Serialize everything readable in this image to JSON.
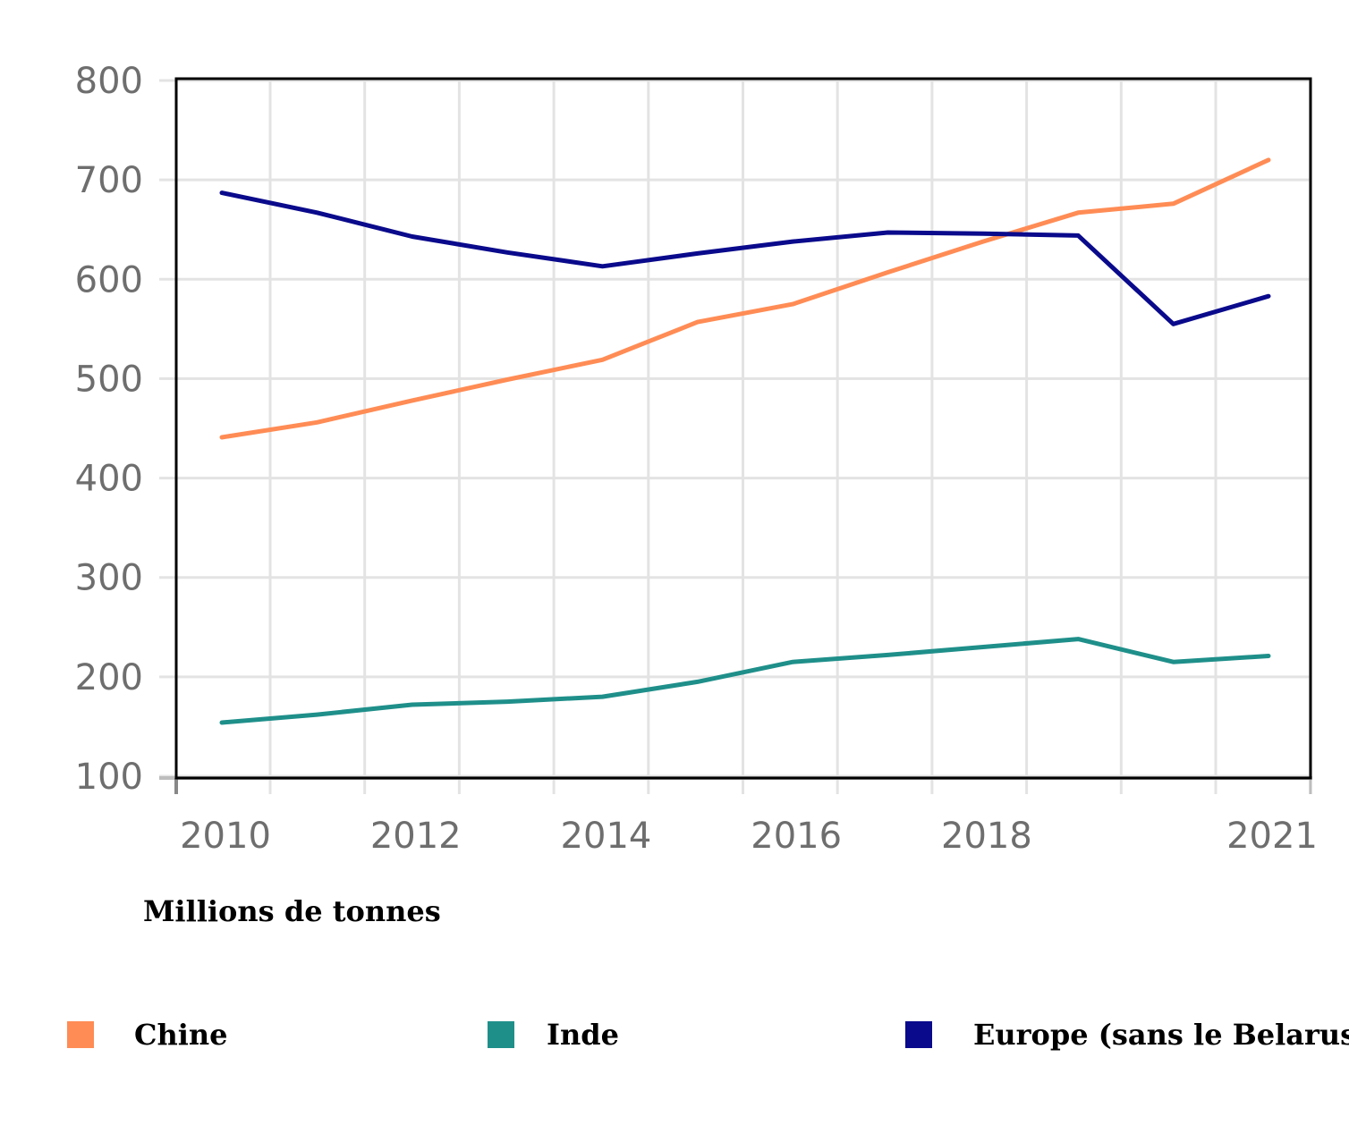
{
  "chart_data": {
    "type": "line",
    "title": "",
    "xlabel": "",
    "ylabel": "Millions de tonnes",
    "x": [
      2010,
      2011,
      2012,
      2013,
      2014,
      2015,
      2016,
      2017,
      2018,
      2019,
      2020,
      2021
    ],
    "x_tick_labels": [
      "2010",
      "2012",
      "2014",
      "2016",
      "2018",
      "2021"
    ],
    "x_tick_values": [
      2010,
      2012,
      2014,
      2016,
      2018,
      2021
    ],
    "y_tick_labels": [
      "800",
      "700",
      "600",
      "500",
      "400",
      "300",
      "200",
      "100"
    ],
    "y_tick_values": [
      800,
      700,
      600,
      500,
      400,
      300,
      200,
      100
    ],
    "ylim": [
      100,
      800
    ],
    "grid": true,
    "legend_position": "bottom",
    "series": [
      {
        "name": "Chine",
        "color": "#ff8c55",
        "values": [
          441,
          456,
          478,
          499,
          519,
          557,
          575,
          607,
          638,
          667,
          676,
          720
        ]
      },
      {
        "name": "Inde",
        "color": "#1f8f8a",
        "values": [
          154,
          162,
          172,
          175,
          180,
          195,
          215,
          222,
          230,
          238,
          215,
          221
        ]
      },
      {
        "name": "Europe (sans le Belarus)",
        "color": "#0a0a8c",
        "values": [
          687,
          667,
          643,
          627,
          613,
          626,
          638,
          647,
          646,
          644,
          555,
          583
        ]
      }
    ]
  },
  "legend": {
    "items": [
      {
        "label": "Chine",
        "color": "#ff8c55"
      },
      {
        "label": "Inde",
        "color": "#1f8f8a"
      },
      {
        "label": "Europe (sans le Belarus)",
        "color": "#0a0a8c"
      }
    ]
  },
  "unit_label": "Millions de tonnes"
}
